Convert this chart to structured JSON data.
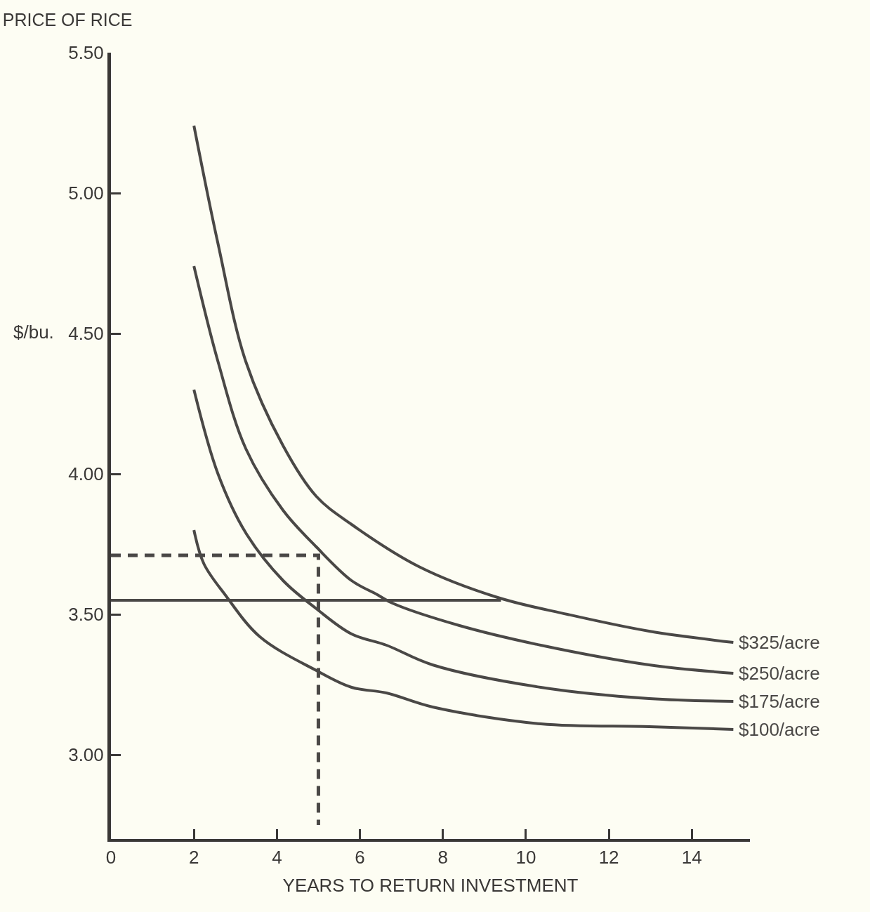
{
  "chart_data": {
    "type": "line",
    "title": "PRICE OF RICE",
    "ylabel": "$/bu.",
    "xlabel": "YEARS TO RETURN INVESTMENT",
    "xlim": [
      0,
      15.4
    ],
    "ylim": [
      2.7,
      5.5
    ],
    "xticks": [
      0,
      2,
      4,
      6,
      8,
      10,
      12,
      14
    ],
    "yticks": [
      {
        "value": 3,
        "label": "3.00"
      },
      {
        "value": 3.5,
        "label": "3.50"
      },
      {
        "value": 4,
        "label": "4.00"
      },
      {
        "value": 4.5,
        "label": "4.50"
      },
      {
        "value": 5,
        "label": "5.00"
      },
      {
        "value": 5.5,
        "label": "5.50"
      }
    ],
    "grid": false,
    "legend": false,
    "marker": "none",
    "line_style": "solid",
    "series": [
      {
        "name": "$325/acre",
        "color": "#4a4846",
        "x": [
          2,
          2.58,
          3.25,
          4.15,
          4.95,
          5.8,
          7.42,
          9.32,
          11,
          12.97,
          15
        ],
        "values": [
          5.24,
          4.82,
          4.4,
          4.1,
          3.92,
          3.82,
          3.67,
          3.56,
          3.5,
          3.44,
          3.4
        ]
      },
      {
        "name": "$250/acre",
        "color": "#4a4846",
        "x": [
          2,
          2.58,
          3.25,
          4.15,
          4.95,
          5.8,
          6.42,
          6.78,
          8.4,
          10.36,
          12.97,
          15
        ],
        "values": [
          4.74,
          4.4,
          4.09,
          3.87,
          3.74,
          3.62,
          3.57,
          3.54,
          3.46,
          3.39,
          3.32,
          3.29
        ]
      },
      {
        "name": "$175/acre",
        "color": "#4a4846",
        "x": [
          2,
          2.58,
          3.25,
          4.15,
          4.95,
          5.8,
          6.64,
          7.75,
          10.36,
          12.97,
          15
        ],
        "values": [
          4.3,
          4,
          3.79,
          3.62,
          3.52,
          3.43,
          3.39,
          3.32,
          3.24,
          3.2,
          3.19
        ]
      },
      {
        "name": "$100/acre",
        "color": "#4a4846",
        "x": [
          2,
          2.24,
          2.75,
          3.59,
          4.95,
          5.8,
          6.64,
          7.75,
          10.36,
          12.97,
          15
        ],
        "values": [
          3.8,
          3.68,
          3.57,
          3.42,
          3.3,
          3.24,
          3.22,
          3.17,
          3.11,
          3.1,
          3.09
        ]
      },
      {
        "color": "#4a4846",
        "x": [
          0,
          9.4
        ],
        "values": [
          3.55,
          3.55
        ]
      },
      {
        "color": "#4a4846",
        "line_style": "dashed",
        "x": [
          0,
          5,
          5
        ],
        "values": [
          3.71,
          3.71,
          2.75
        ]
      }
    ]
  }
}
